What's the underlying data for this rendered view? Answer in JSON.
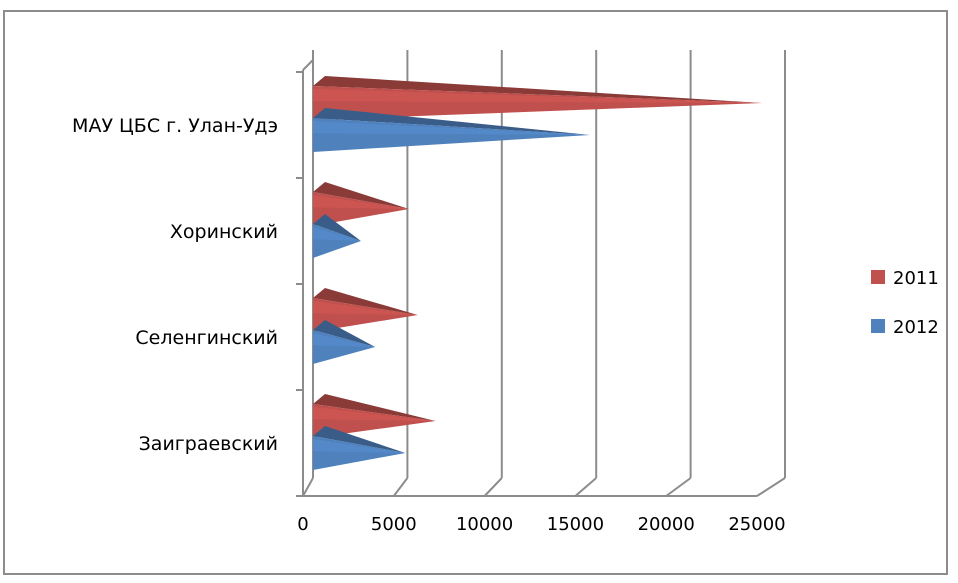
{
  "chart_data": {
    "type": "bar",
    "orientation": "horizontal",
    "style": "3d-cone",
    "title": "",
    "xlabel": "",
    "ylabel": "",
    "categories": [
      "МАУ ЦБС г. Улан-Удэ",
      "Хоринский",
      "Селенгинский",
      "Заиграевский"
    ],
    "series": [
      {
        "name": "2011",
        "color": "#c0504d",
        "values": [
          25300,
          5400,
          5900,
          6900
        ]
      },
      {
        "name": "2012",
        "color": "#4f81bd",
        "values": [
          15600,
          2700,
          3500,
          5200
        ]
      }
    ],
    "xlim": [
      0,
      25000
    ],
    "xticks": [
      "0",
      "5000",
      "10000",
      "15000",
      "20000",
      "25000"
    ],
    "grid": true,
    "legend": "right"
  }
}
